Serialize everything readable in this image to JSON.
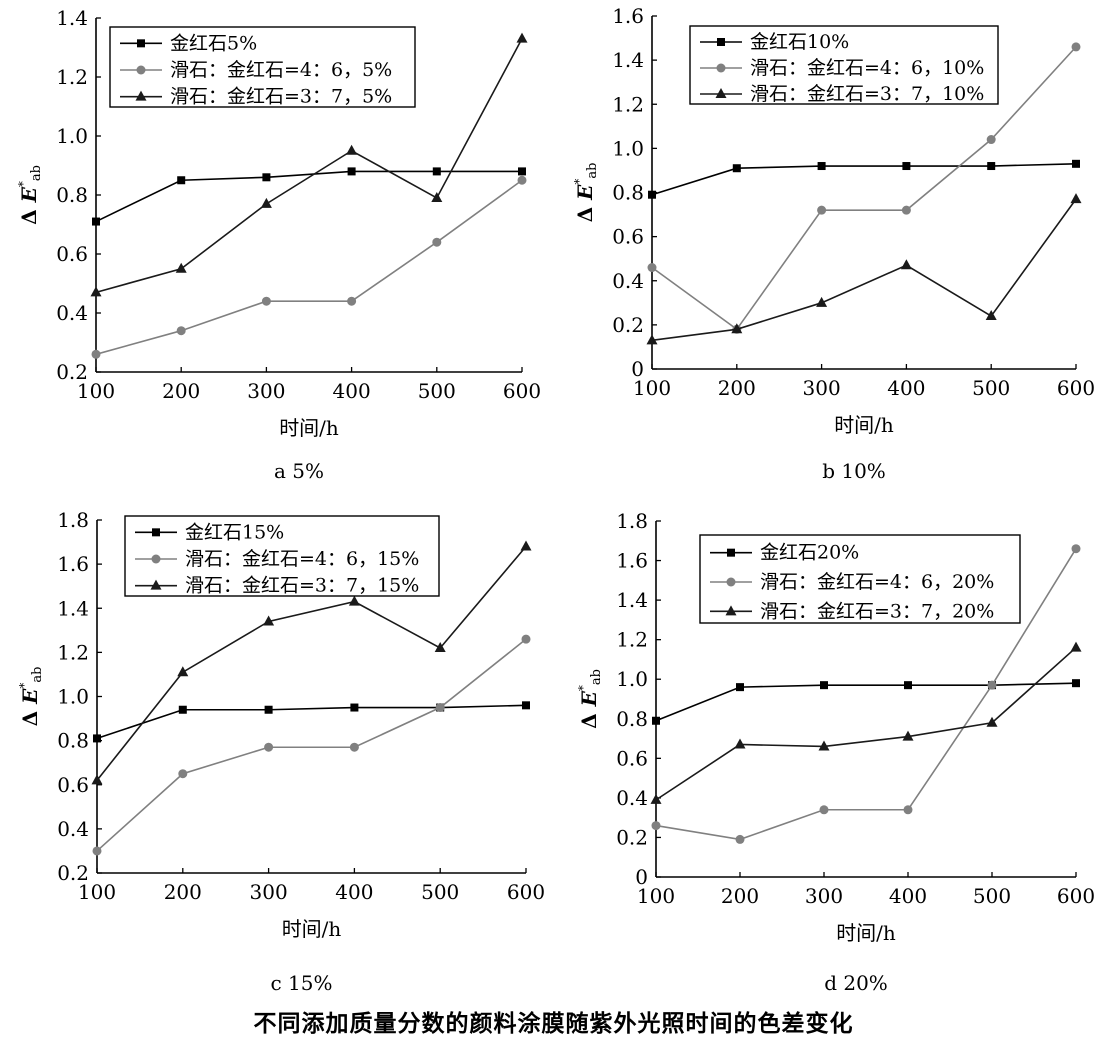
{
  "figure_title": "不同添加质量分数的颜料涂膜随紫外光照时间的色差变化",
  "series_colors": {
    "rutile": "#000000",
    "talc46": "#808080",
    "talc37": "#1a1a1a"
  },
  "marker_icons": {
    "rutile": "square-marker",
    "talc46": "circle-marker",
    "talc37": "triangle-marker"
  },
  "chart_data": [
    {
      "type": "line",
      "subplot_label": "a 5%",
      "xlabel": "时间/h",
      "ylabel": {
        "prefix": "Δ",
        "var": "E",
        "sup": "*",
        "sub": "ab"
      },
      "x": [
        100,
        200,
        300,
        400,
        500,
        600
      ],
      "xlim": [
        100,
        600
      ],
      "ylim": [
        0.2,
        1.4
      ],
      "yticks": [
        "0.2",
        "0.4",
        "0.6",
        "0.8",
        "1.0",
        "1.2",
        "1.4"
      ],
      "xticks": [
        "100",
        "200",
        "300",
        "400",
        "500",
        "600"
      ],
      "legend_position": "top-left",
      "series": [
        {
          "name": "金红石5%",
          "values": [
            0.71,
            0.85,
            0.86,
            0.88,
            0.88,
            0.88
          ]
        },
        {
          "name": "滑石：金红石=4：6，5%",
          "values": [
            0.26,
            0.34,
            0.44,
            0.44,
            0.64,
            0.85
          ]
        },
        {
          "name": "滑石：金红石=3：7，5%",
          "values": [
            0.47,
            0.55,
            0.77,
            0.95,
            0.79,
            1.33
          ]
        }
      ]
    },
    {
      "type": "line",
      "subplot_label": "b 10%",
      "xlabel": "时间/h",
      "ylabel": {
        "prefix": "Δ",
        "var": "E",
        "sup": "*",
        "sub": "ab"
      },
      "x": [
        100,
        200,
        300,
        400,
        500,
        600
      ],
      "xlim": [
        100,
        600
      ],
      "ylim": [
        0,
        1.6
      ],
      "yticks": [
        "0",
        "0.2",
        "0.4",
        "0.6",
        "0.8",
        "1.0",
        "1.2",
        "1.4",
        "1.6"
      ],
      "xticks": [
        "100",
        "200",
        "300",
        "400",
        "500",
        "600"
      ],
      "legend_position": "top-left",
      "series": [
        {
          "name": "金红石10%",
          "values": [
            0.79,
            0.91,
            0.92,
            0.92,
            0.92,
            0.93
          ]
        },
        {
          "name": "滑石：金红石=4：6，10%",
          "values": [
            0.46,
            0.18,
            0.72,
            0.72,
            1.04,
            1.46
          ]
        },
        {
          "name": "滑石：金红石=3：7，10%",
          "values": [
            0.13,
            0.18,
            0.3,
            0.47,
            0.24,
            0.77
          ]
        }
      ]
    },
    {
      "type": "line",
      "subplot_label": "c 15%",
      "xlabel": "时间/h",
      "ylabel": {
        "prefix": "Δ",
        "var": "E",
        "sup": "*",
        "sub": "ab"
      },
      "x": [
        100,
        200,
        300,
        400,
        500,
        600
      ],
      "xlim": [
        100,
        600
      ],
      "ylim": [
        0.2,
        1.8
      ],
      "yticks": [
        "0.2",
        "0.4",
        "0.6",
        "0.8",
        "1.0",
        "1.2",
        "1.4",
        "1.6",
        "1.8"
      ],
      "xticks": [
        "100",
        "200",
        "300",
        "400",
        "500",
        "600"
      ],
      "legend_position": "top-left",
      "series": [
        {
          "name": "金红石15%",
          "values": [
            0.81,
            0.94,
            0.94,
            0.95,
            0.95,
            0.96
          ]
        },
        {
          "name": "滑石：金红石=4：6，15%",
          "values": [
            0.3,
            0.65,
            0.77,
            0.77,
            0.95,
            1.26
          ]
        },
        {
          "name": "滑石：金红石=3：7，15%",
          "values": [
            0.62,
            1.11,
            1.34,
            1.43,
            1.22,
            1.68
          ]
        }
      ]
    },
    {
      "type": "line",
      "subplot_label": "d 20%",
      "xlabel": "时间/h",
      "ylabel": {
        "prefix": "Δ",
        "var": "E",
        "sup": "*",
        "sub": "ab"
      },
      "x": [
        100,
        200,
        300,
        400,
        500,
        600
      ],
      "xlim": [
        100,
        600
      ],
      "ylim": [
        0,
        1.8
      ],
      "yticks": [
        "0",
        "0.2",
        "0.4",
        "0.6",
        "0.8",
        "1.0",
        "1.2",
        "1.4",
        "1.6",
        "1.8"
      ],
      "xticks": [
        "100",
        "200",
        "300",
        "400",
        "500",
        "600"
      ],
      "legend_position": "top-left",
      "series": [
        {
          "name": "金红石20%",
          "values": [
            0.79,
            0.96,
            0.97,
            0.97,
            0.97,
            0.98
          ]
        },
        {
          "name": "滑石：金红石=4：6，20%",
          "values": [
            0.26,
            0.19,
            0.34,
            0.34,
            0.97,
            1.66
          ]
        },
        {
          "name": "滑石：金红石=3：7，20%",
          "values": [
            0.39,
            0.67,
            0.66,
            0.71,
            0.78,
            1.16
          ]
        }
      ]
    }
  ]
}
